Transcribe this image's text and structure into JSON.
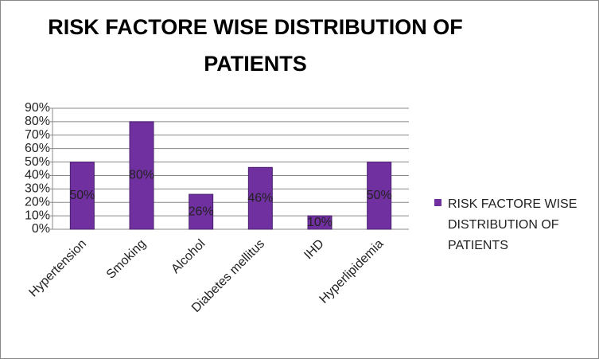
{
  "chart_data": {
    "type": "bar",
    "title": "RISK FACTORE WISE DISTRIBUTION OF PATIENTS",
    "categories": [
      "Hypertension",
      "Smoking",
      "Alcohol",
      "Diabetes mellitus",
      "IHD",
      "Hyperlipidemia"
    ],
    "series": [
      {
        "name": "RISK FACTORE WISE DISTRIBUTION  OF PATIENTS",
        "color": "#7030a0",
        "values": [
          50,
          80,
          26,
          46,
          10,
          50
        ],
        "value_labels": [
          "50%",
          "80%",
          "26%",
          "46%",
          "10%",
          "50%"
        ]
      }
    ],
    "ylim": [
      0,
      90
    ],
    "yticks": [
      {
        "value": 0,
        "label": "0%"
      },
      {
        "value": 10,
        "label": "10%"
      },
      {
        "value": 20,
        "label": "20%"
      },
      {
        "value": 30,
        "label": "30%"
      },
      {
        "value": 40,
        "label": "40%"
      },
      {
        "value": 50,
        "label": "50%"
      },
      {
        "value": 60,
        "label": "60%"
      },
      {
        "value": 70,
        "label": "70%"
      },
      {
        "value": 80,
        "label": "80%"
      },
      {
        "value": 90,
        "label": "90%"
      }
    ],
    "grid": true,
    "legend": "right"
  }
}
